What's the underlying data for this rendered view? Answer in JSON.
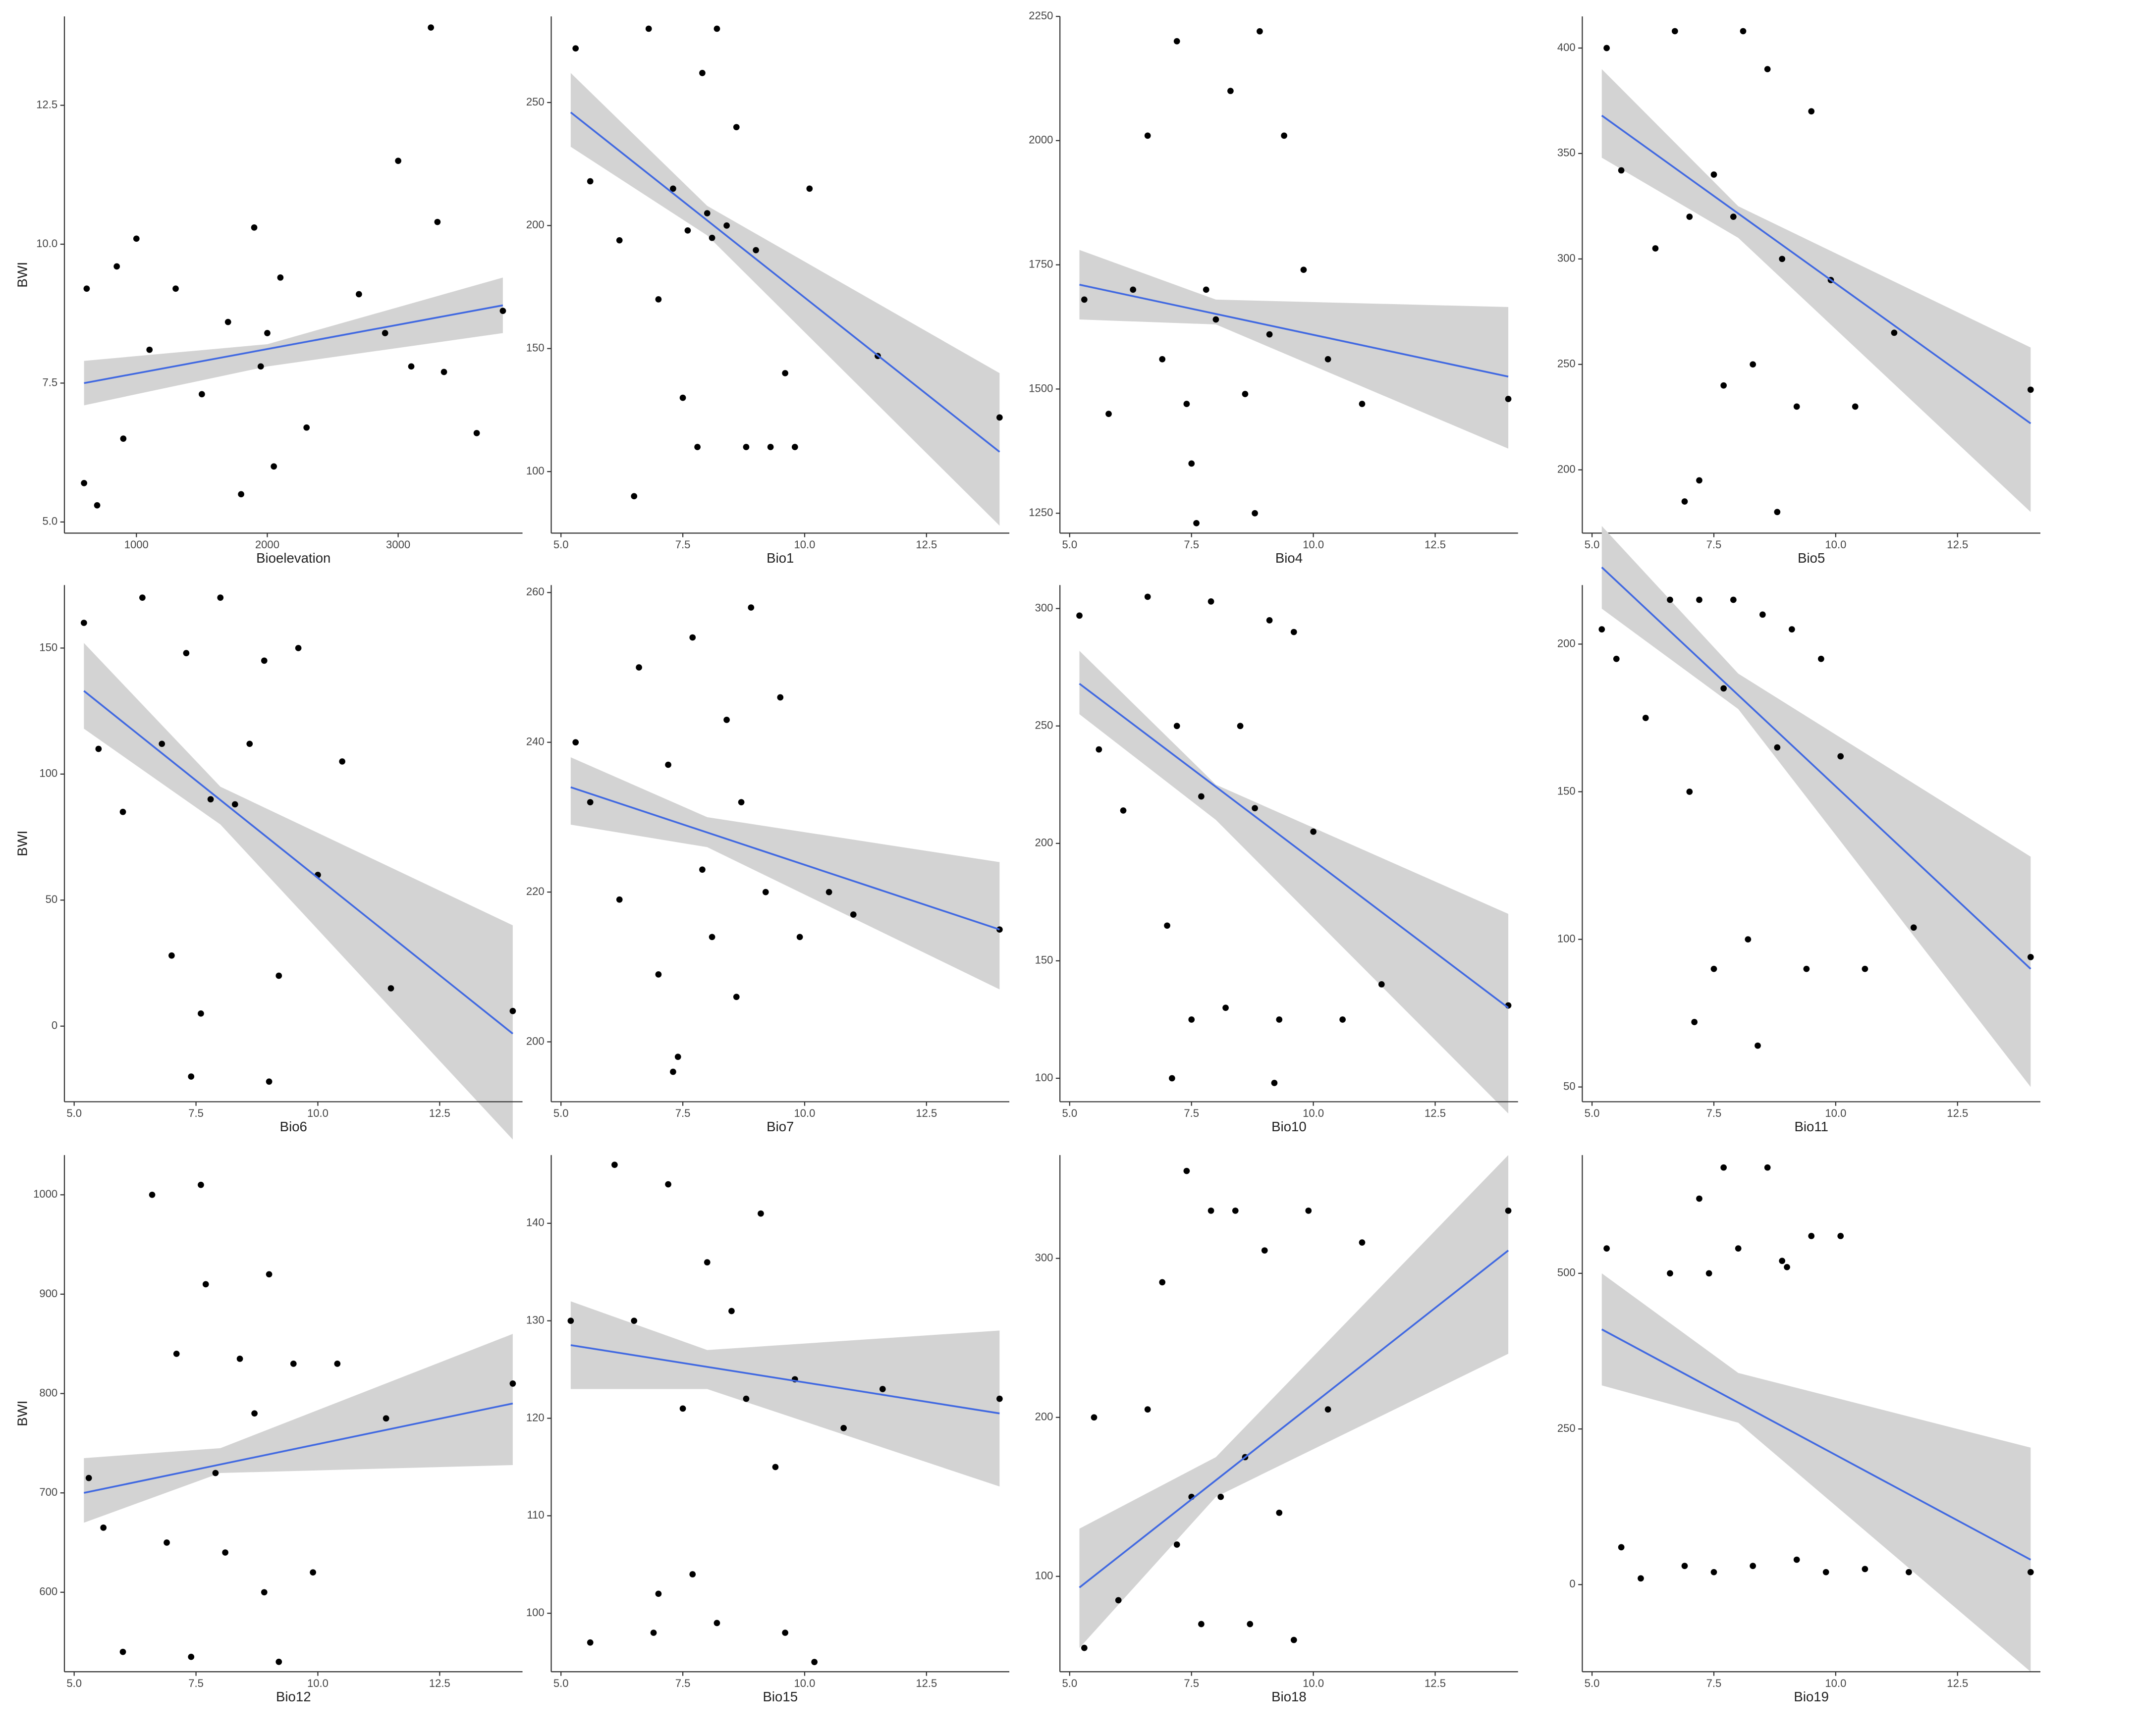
{
  "chart_data": [
    {
      "type": "scatter",
      "x_label": "Bioelevation",
      "y_label": "BWI",
      "xlim": [
        450,
        3950
      ],
      "ylim": [
        4.8,
        14.1
      ],
      "xticks": [
        1000,
        2000,
        3000
      ],
      "yticks": [
        {
          "value": 5,
          "label": "5.0"
        },
        {
          "value": 7.5,
          "label": "7.5"
        },
        {
          "value": 10,
          "label": "10.0"
        },
        {
          "value": 12.5,
          "label": "12.5"
        }
      ],
      "color": "#000000",
      "x": [
        600,
        620,
        700,
        850,
        900,
        1000,
        1100,
        1300,
        1500,
        1700,
        1800,
        1900,
        1950,
        2000,
        2050,
        2100,
        2300,
        2700,
        2900,
        3000,
        3100,
        3250,
        3300,
        3350,
        3600,
        3800
      ],
      "y": [
        5.7,
        9.2,
        5.3,
        9.6,
        6.5,
        10.1,
        8.1,
        9.2,
        7.3,
        8.6,
        5.5,
        10.3,
        7.8,
        8.4,
        6.0,
        9.4,
        6.7,
        9.1,
        8.4,
        11.5,
        7.8,
        13.9,
        10.4,
        7.7,
        6.6,
        8.8
      ],
      "fit": {
        "x": [
          600,
          3800
        ],
        "y": [
          7.5,
          8.9
        ],
        "color": "#4169e1"
      },
      "band": {
        "x": [
          600,
          2000,
          3800
        ],
        "lower": [
          7.1,
          7.8,
          8.4
        ],
        "upper": [
          7.9,
          8.2,
          9.4
        ],
        "color": "#d3d3d3"
      }
    },
    {
      "type": "scatter",
      "x_label": "Bio1",
      "xlim": [
        4.8,
        14.2
      ],
      "ylim": [
        75,
        285
      ],
      "xticks": [
        {
          "value": 5,
          "label": "5.0"
        },
        {
          "value": 7.5,
          "label": "7.5"
        },
        {
          "value": 10,
          "label": "10.0"
        },
        {
          "value": 12.5,
          "label": "12.5"
        }
      ],
      "yticks": [
        100,
        150,
        200,
        250
      ],
      "color": "#000000",
      "x": [
        5.3,
        5.6,
        6.2,
        6.8,
        7.0,
        7.3,
        7.5,
        7.6,
        7.8,
        7.9,
        8.0,
        8.2,
        8.4,
        8.6,
        8.8,
        9.0,
        9.3,
        9.6,
        10.1,
        11.5,
        14.0,
        6.5,
        9.8,
        8.1
      ],
      "y": [
        272,
        218,
        194,
        280,
        170,
        215,
        130,
        198,
        110,
        262,
        205,
        280,
        200,
        240,
        110,
        190,
        110,
        140,
        215,
        147,
        122,
        90,
        110,
        195
      ],
      "fit": {
        "x": [
          5.2,
          14
        ],
        "y": [
          246,
          108
        ],
        "color": "#4169e1"
      },
      "band": {
        "x": [
          5.2,
          8,
          14
        ],
        "lower": [
          232,
          196,
          78
        ],
        "upper": [
          262,
          208,
          140
        ],
        "color": "#d3d3d3"
      }
    },
    {
      "type": "scatter",
      "x_label": "Bio4",
      "xlim": [
        4.8,
        14.2
      ],
      "ylim": [
        1210,
        2250
      ],
      "xticks": [
        {
          "value": 5,
          "label": "5.0"
        },
        {
          "value": 7.5,
          "label": "7.5"
        },
        {
          "value": 10,
          "label": "10.0"
        },
        {
          "value": 12.5,
          "label": "12.5"
        }
      ],
      "yticks": [
        1250,
        1500,
        1750,
        2000,
        2250
      ],
      "color": "#000000",
      "x": [
        5.3,
        5.8,
        6.3,
        6.6,
        6.9,
        7.2,
        7.4,
        7.6,
        7.8,
        8.0,
        8.3,
        8.6,
        8.9,
        9.1,
        9.4,
        9.8,
        10.3,
        11.0,
        14.0,
        7.5,
        8.8
      ],
      "y": [
        1680,
        1450,
        1700,
        2010,
        1560,
        2200,
        1470,
        1230,
        1700,
        1640,
        2100,
        1490,
        2220,
        1610,
        2010,
        1740,
        1560,
        1470,
        1480,
        1350,
        1250
      ],
      "fit": {
        "x": [
          5.2,
          14
        ],
        "y": [
          1710,
          1525
        ],
        "color": "#4169e1"
      },
      "band": {
        "x": [
          5.2,
          8,
          14
        ],
        "lower": [
          1640,
          1630,
          1380
        ],
        "upper": [
          1780,
          1680,
          1665
        ],
        "color": "#d3d3d3"
      }
    },
    {
      "type": "scatter",
      "x_label": "Bio5",
      "xlim": [
        4.8,
        14.2
      ],
      "ylim": [
        170,
        415
      ],
      "xticks": [
        {
          "value": 5,
          "label": "5.0"
        },
        {
          "value": 7.5,
          "label": "7.5"
        },
        {
          "value": 10,
          "label": "10.0"
        },
        {
          "value": 12.5,
          "label": "12.5"
        }
      ],
      "yticks": [
        200,
        250,
        300,
        350,
        400
      ],
      "color": "#000000",
      "x": [
        5.3,
        5.6,
        6.3,
        6.7,
        7.0,
        7.2,
        7.5,
        7.7,
        7.9,
        8.1,
        8.3,
        8.6,
        8.9,
        9.2,
        9.5,
        9.9,
        10.4,
        11.2,
        14.0,
        6.9,
        8.8
      ],
      "y": [
        400,
        342,
        305,
        408,
        320,
        195,
        340,
        240,
        320,
        408,
        250,
        390,
        300,
        230,
        370,
        290,
        230,
        265,
        238,
        185,
        180
      ],
      "fit": {
        "x": [
          5.2,
          14
        ],
        "y": [
          368,
          222
        ],
        "color": "#4169e1"
      },
      "band": {
        "x": [
          5.2,
          8,
          14
        ],
        "lower": [
          348,
          310,
          180
        ],
        "upper": [
          390,
          325,
          258
        ],
        "color": "#d3d3d3"
      }
    },
    {
      "type": "scatter",
      "x_label": "Bio6",
      "y_label": "BWI",
      "xlim": [
        4.8,
        14.2
      ],
      "ylim": [
        -30,
        175
      ],
      "xticks": [
        {
          "value": 5,
          "label": "5.0"
        },
        {
          "value": 7.5,
          "label": "7.5"
        },
        {
          "value": 10,
          "label": "10.0"
        },
        {
          "value": 12.5,
          "label": "12.5"
        }
      ],
      "yticks": [
        0,
        50,
        100,
        150
      ],
      "color": "#000000",
      "x": [
        5.2,
        5.5,
        6.0,
        6.4,
        6.8,
        7.0,
        7.3,
        7.6,
        7.8,
        8.0,
        8.3,
        8.6,
        8.9,
        9.2,
        9.6,
        10.0,
        10.5,
        11.5,
        14.0,
        7.4,
        9.0
      ],
      "y": [
        160,
        110,
        85,
        170,
        112,
        28,
        148,
        5,
        90,
        170,
        88,
        112,
        145,
        20,
        150,
        60,
        105,
        15,
        6,
        -20,
        -22
      ],
      "fit": {
        "x": [
          5.2,
          14
        ],
        "y": [
          133,
          -3
        ],
        "color": "#4169e1"
      },
      "band": {
        "x": [
          5.2,
          8,
          14
        ],
        "lower": [
          118,
          80,
          -45
        ],
        "upper": [
          152,
          95,
          40
        ],
        "color": "#d3d3d3"
      }
    },
    {
      "type": "scatter",
      "x_label": "Bio7",
      "xlim": [
        4.8,
        14.2
      ],
      "ylim": [
        192,
        261
      ],
      "xticks": [
        {
          "value": 5,
          "label": "5.0"
        },
        {
          "value": 7.5,
          "label": "7.5"
        },
        {
          "value": 10,
          "label": "10.0"
        },
        {
          "value": 12.5,
          "label": "12.5"
        }
      ],
      "yticks": [
        200,
        220,
        240,
        260
      ],
      "color": "#000000",
      "x": [
        5.3,
        5.6,
        6.2,
        6.6,
        7.0,
        7.2,
        7.4,
        7.7,
        7.9,
        8.1,
        8.4,
        8.7,
        8.9,
        9.2,
        9.5,
        9.9,
        10.5,
        11.0,
        14.0,
        7.3,
        8.6
      ],
      "y": [
        240,
        232,
        219,
        250,
        209,
        237,
        198,
        254,
        223,
        214,
        243,
        232,
        258,
        220,
        246,
        214,
        220,
        217,
        215,
        196,
        206
      ],
      "fit": {
        "x": [
          5.2,
          14
        ],
        "y": [
          234,
          215
        ],
        "color": "#4169e1"
      },
      "band": {
        "x": [
          5.2,
          8,
          14
        ],
        "lower": [
          229,
          226,
          207
        ],
        "upper": [
          238,
          230,
          224
        ],
        "color": "#d3d3d3"
      }
    },
    {
      "type": "scatter",
      "x_label": "Bio10",
      "xlim": [
        4.8,
        14.2
      ],
      "ylim": [
        90,
        310
      ],
      "xticks": [
        {
          "value": 5,
          "label": "5.0"
        },
        {
          "value": 7.5,
          "label": "7.5"
        },
        {
          "value": 10,
          "label": "10.0"
        },
        {
          "value": 12.5,
          "label": "12.5"
        }
      ],
      "yticks": [
        100,
        150,
        200,
        250,
        300
      ],
      "color": "#000000",
      "x": [
        5.2,
        5.6,
        6.1,
        6.6,
        7.0,
        7.2,
        7.5,
        7.7,
        7.9,
        8.2,
        8.5,
        8.8,
        9.1,
        9.3,
        9.6,
        10.0,
        10.6,
        11.4,
        14.0,
        7.1,
        9.2
      ],
      "y": [
        297,
        240,
        214,
        305,
        165,
        250,
        125,
        220,
        303,
        130,
        250,
        215,
        295,
        125,
        290,
        205,
        125,
        140,
        131,
        100,
        98
      ],
      "fit": {
        "x": [
          5.2,
          14
        ],
        "y": [
          268,
          130
        ],
        "color": "#4169e1"
      },
      "band": {
        "x": [
          5.2,
          8,
          14
        ],
        "lower": [
          255,
          210,
          85
        ],
        "upper": [
          282,
          225,
          170
        ],
        "color": "#d3d3d3"
      }
    },
    {
      "type": "scatter",
      "x_label": "Bio11",
      "xlim": [
        4.8,
        14.2
      ],
      "ylim": [
        45,
        220
      ],
      "xticks": [
        {
          "value": 5,
          "label": "5.0"
        },
        {
          "value": 7.5,
          "label": "7.5"
        },
        {
          "value": 10,
          "label": "10.0"
        },
        {
          "value": 12.5,
          "label": "12.5"
        }
      ],
      "yticks": [
        50,
        100,
        150,
        200
      ],
      "color": "#000000",
      "x": [
        5.2,
        5.5,
        6.1,
        6.6,
        7.0,
        7.2,
        7.5,
        7.7,
        7.9,
        8.2,
        8.5,
        8.8,
        9.1,
        9.4,
        9.7,
        10.1,
        10.6,
        11.6,
        14.0,
        7.1,
        8.4
      ],
      "y": [
        205,
        195,
        175,
        215,
        150,
        215,
        90,
        185,
        215,
        100,
        210,
        165,
        205,
        90,
        195,
        162,
        90,
        104,
        94,
        72,
        64
      ],
      "fit": {
        "x": [
          5.2,
          14
        ],
        "y": [
          226,
          90
        ],
        "color": "#4169e1"
      },
      "band": {
        "x": [
          5.2,
          8,
          14
        ],
        "lower": [
          212,
          178,
          50
        ],
        "upper": [
          240,
          190,
          128
        ],
        "color": "#d3d3d3"
      }
    },
    {
      "type": "scatter",
      "x_label": "Bio12",
      "y_label": "BWI",
      "xlim": [
        4.8,
        14.2
      ],
      "ylim": [
        520,
        1040
      ],
      "xticks": [
        {
          "value": 5,
          "label": "5.0"
        },
        {
          "value": 7.5,
          "label": "7.5"
        },
        {
          "value": 10,
          "label": "10.0"
        },
        {
          "value": 12.5,
          "label": "12.5"
        }
      ],
      "yticks": [
        600,
        700,
        800,
        900,
        1000
      ],
      "color": "#000000",
      "x": [
        5.3,
        5.6,
        6.0,
        6.6,
        6.9,
        7.1,
        7.4,
        7.6,
        7.9,
        8.1,
        8.4,
        8.7,
        9.0,
        9.2,
        9.5,
        9.9,
        10.4,
        11.4,
        14.0,
        7.7,
        8.9
      ],
      "y": [
        715,
        665,
        540,
        1000,
        650,
        840,
        535,
        1010,
        720,
        640,
        835,
        780,
        920,
        530,
        830,
        620,
        830,
        775,
        810,
        910,
        600
      ],
      "fit": {
        "x": [
          5.2,
          14
        ],
        "y": [
          700,
          790
        ],
        "color": "#4169e1"
      },
      "band": {
        "x": [
          5.2,
          8,
          14
        ],
        "lower": [
          670,
          720,
          728
        ],
        "upper": [
          735,
          745,
          860
        ],
        "color": "#d3d3d3"
      }
    },
    {
      "type": "scatter",
      "x_label": "Bio15",
      "xlim": [
        4.8,
        14.2
      ],
      "ylim": [
        94,
        147
      ],
      "xticks": [
        {
          "value": 5,
          "label": "5.0"
        },
        {
          "value": 7.5,
          "label": "7.5"
        },
        {
          "value": 10,
          "label": "10.0"
        },
        {
          "value": 12.5,
          "label": "12.5"
        }
      ],
      "yticks": [
        100,
        110,
        120,
        130,
        140
      ],
      "color": "#000000",
      "x": [
        5.2,
        5.6,
        6.1,
        6.5,
        6.9,
        7.2,
        7.5,
        7.7,
        8.0,
        8.2,
        8.5,
        8.8,
        9.1,
        9.4,
        9.8,
        10.2,
        10.8,
        11.6,
        14.0,
        7.0,
        9.6
      ],
      "y": [
        130,
        97,
        146,
        130,
        98,
        144,
        121,
        104,
        136,
        99,
        131,
        122,
        141,
        115,
        124,
        95,
        119,
        123,
        122,
        102,
        98
      ],
      "fit": {
        "x": [
          5.2,
          14
        ],
        "y": [
          127.5,
          120.5
        ],
        "color": "#4169e1"
      },
      "band": {
        "x": [
          5.2,
          8,
          14
        ],
        "lower": [
          123,
          123,
          113
        ],
        "upper": [
          132,
          127,
          129
        ],
        "color": "#d3d3d3"
      }
    },
    {
      "type": "scatter",
      "x_label": "Bio18",
      "xlim": [
        4.8,
        14.2
      ],
      "ylim": [
        40,
        365
      ],
      "xticks": [
        {
          "value": 5,
          "label": "5.0"
        },
        {
          "value": 7.5,
          "label": "7.5"
        },
        {
          "value": 10,
          "label": "10.0"
        },
        {
          "value": 12.5,
          "label": "12.5"
        }
      ],
      "yticks": [
        100,
        200,
        300
      ],
      "color": "#000000",
      "x": [
        5.3,
        5.5,
        6.0,
        6.6,
        6.9,
        7.2,
        7.4,
        7.7,
        7.9,
        8.1,
        8.4,
        8.7,
        9.0,
        9.3,
        9.6,
        9.9,
        10.3,
        11.0,
        14.0,
        7.5,
        8.6
      ],
      "y": [
        55,
        200,
        85,
        205,
        285,
        120,
        355,
        70,
        330,
        150,
        330,
        70,
        305,
        140,
        60,
        330,
        205,
        310,
        330,
        150,
        175
      ],
      "fit": {
        "x": [
          5.2,
          14
        ],
        "y": [
          93,
          305
        ],
        "color": "#4169e1"
      },
      "band": {
        "x": [
          5.2,
          8,
          14
        ],
        "lower": [
          55,
          150,
          240
        ],
        "upper": [
          130,
          175,
          365
        ],
        "color": "#d3d3d3"
      }
    },
    {
      "type": "scatter",
      "x_label": "Bio19",
      "xlim": [
        4.8,
        14.2
      ],
      "ylim": [
        -140,
        690
      ],
      "xticks": [
        {
          "value": 5,
          "label": "5.0"
        },
        {
          "value": 7.5,
          "label": "7.5"
        },
        {
          "value": 10,
          "label": "10.0"
        },
        {
          "value": 12.5,
          "label": "12.5"
        }
      ],
      "yticks": [
        0,
        250,
        500
      ],
      "color": "#000000",
      "x": [
        5.3,
        5.6,
        6.0,
        6.6,
        6.9,
        7.2,
        7.5,
        7.7,
        8.0,
        8.3,
        8.6,
        8.9,
        9.2,
        9.5,
        9.8,
        10.1,
        10.6,
        11.5,
        14.0,
        7.4,
        9.0
      ],
      "y": [
        540,
        60,
        10,
        500,
        30,
        620,
        20,
        670,
        540,
        30,
        670,
        520,
        40,
        560,
        20,
        560,
        25,
        20,
        20,
        500,
        510
      ],
      "fit": {
        "x": [
          5.2,
          14
        ],
        "y": [
          410,
          40
        ],
        "color": "#4169e1"
      },
      "band": {
        "x": [
          5.2,
          8,
          14
        ],
        "lower": [
          320,
          260,
          -140
        ],
        "upper": [
          500,
          340,
          220
        ],
        "color": "#d3d3d3"
      }
    }
  ]
}
